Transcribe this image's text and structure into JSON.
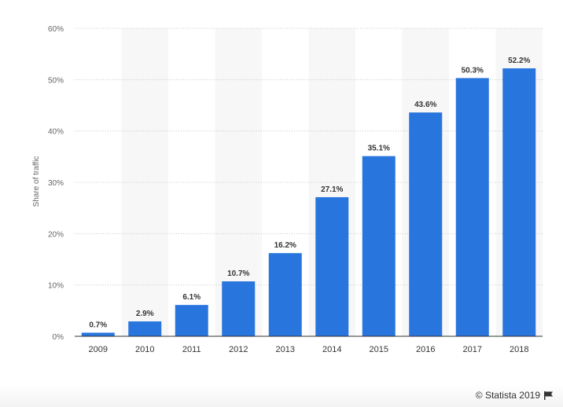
{
  "chart_data": {
    "type": "bar",
    "categories": [
      "2009",
      "2010",
      "2011",
      "2012",
      "2013",
      "2014",
      "2015",
      "2016",
      "2017",
      "2018"
    ],
    "values": [
      0.7,
      2.9,
      6.1,
      10.7,
      16.2,
      27.1,
      35.1,
      43.6,
      50.3,
      52.2
    ],
    "value_labels": [
      "0.7%",
      "2.9%",
      "6.1%",
      "10.7%",
      "16.2%",
      "27.1%",
      "35.1%",
      "43.6%",
      "50.3%",
      "52.2%"
    ],
    "ylabel": "Share of traffic",
    "ylim": [
      0,
      60
    ],
    "y_ticks": [
      0,
      10,
      20,
      30,
      40,
      50,
      60
    ],
    "y_tick_labels": [
      "0%",
      "10%",
      "20%",
      "30%",
      "40%",
      "50%",
      "60%"
    ],
    "grid": true,
    "bar_color": "#2876dd",
    "alt_band_color": "#f7f7f7"
  },
  "footer": {
    "credit": "© Statista 2019",
    "flag_icon": "flag-icon"
  }
}
